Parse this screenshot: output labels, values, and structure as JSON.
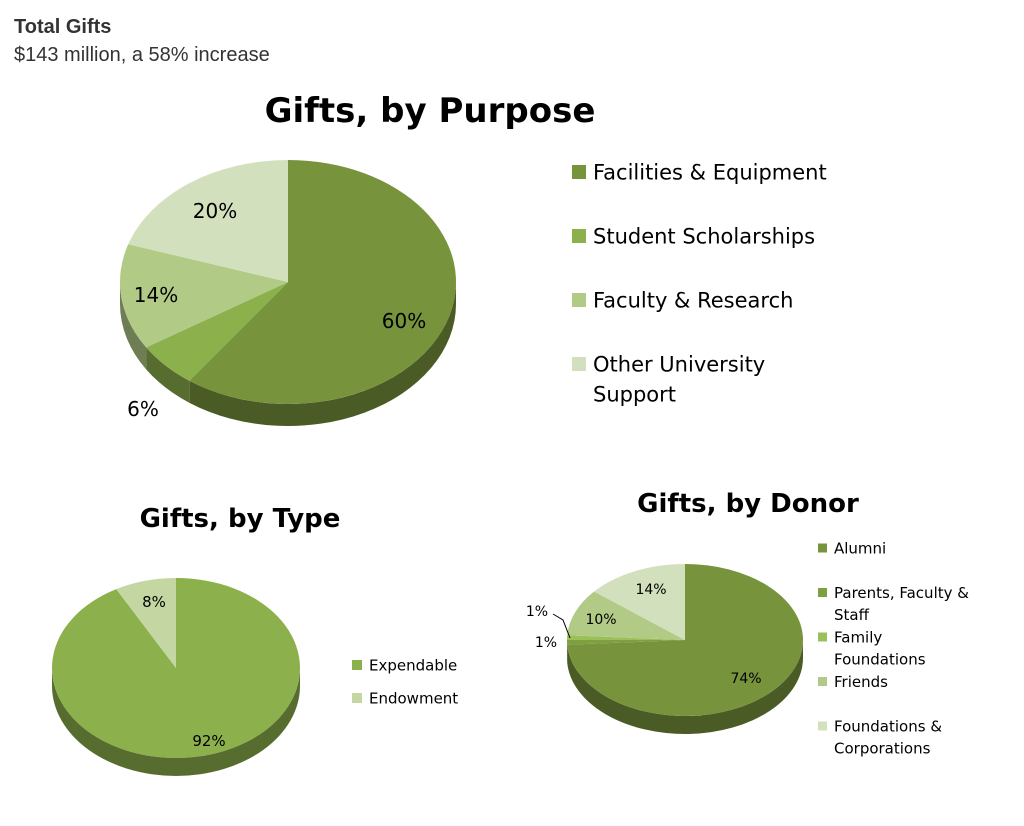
{
  "header": {
    "title": "Total Gifts",
    "subtitle": "$143 million, a 58% increase"
  },
  "chart_data": [
    {
      "type": "pie",
      "title": "Gifts, by Purpose",
      "categories": [
        "Facilities & Equipment",
        "Student Scholarships",
        "Faculty & Research",
        "Other University Support"
      ],
      "values": [
        60,
        6,
        14,
        20
      ],
      "labels": [
        "60%",
        "6%",
        "14%",
        "20%"
      ],
      "colors": [
        "#77933c",
        "#8cb04c",
        "#b1ca86",
        "#d3e0bd"
      ],
      "legend": "right"
    },
    {
      "type": "pie",
      "title": "Gifts, by Type",
      "categories": [
        "Expendable",
        "Endowment"
      ],
      "values": [
        92,
        8
      ],
      "labels": [
        "92%",
        "8%"
      ],
      "colors": [
        "#8cb04c",
        "#c4d7a2"
      ],
      "legend": "right"
    },
    {
      "type": "pie",
      "title": "Gifts, by Donor",
      "categories": [
        "Alumni",
        "Parents, Faculty & Staff",
        "Family Foundations",
        "Friends",
        "Foundations & Corporations"
      ],
      "values": [
        74,
        1,
        1,
        10,
        14
      ],
      "labels": [
        "74%",
        "1%",
        "1%",
        "10%",
        "14%"
      ],
      "colors": [
        "#77933c",
        "#7fa040",
        "#9bc05a",
        "#b1ca86",
        "#d3e0bd"
      ],
      "legend": "right"
    }
  ]
}
